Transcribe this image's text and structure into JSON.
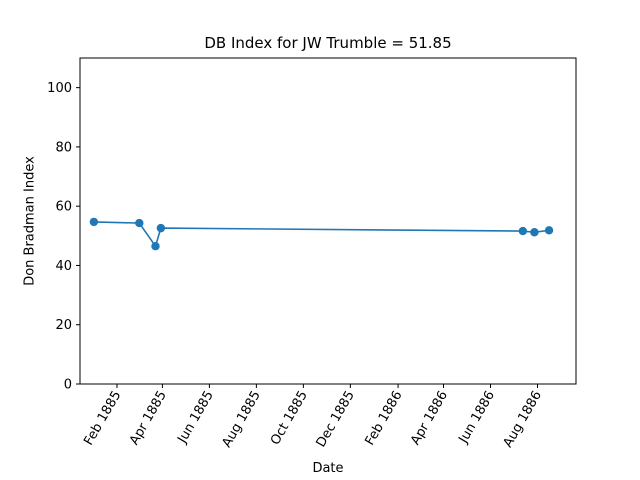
{
  "chart_data": {
    "type": "line",
    "title": "DB Index for JW Trumble = 51.85",
    "xlabel": "Date",
    "ylabel": "Don Bradman Index",
    "ylim": [
      0,
      110
    ],
    "yticks": [
      0,
      20,
      40,
      60,
      80,
      100
    ],
    "xlim": [
      "1884-12-15",
      "1886-09-20"
    ],
    "xticks": [
      {
        "date": "1885-02-01",
        "label": "Feb 1885"
      },
      {
        "date": "1885-04-01",
        "label": "Apr 1885"
      },
      {
        "date": "1885-06-01",
        "label": "Jun 1885"
      },
      {
        "date": "1885-08-01",
        "label": "Aug 1885"
      },
      {
        "date": "1885-10-01",
        "label": "Oct 1885"
      },
      {
        "date": "1885-12-01",
        "label": "Dec 1885"
      },
      {
        "date": "1886-02-01",
        "label": "Feb 1886"
      },
      {
        "date": "1886-04-01",
        "label": "Apr 1886"
      },
      {
        "date": "1886-06-01",
        "label": "Jun 1886"
      },
      {
        "date": "1886-08-01",
        "label": "Aug 1886"
      }
    ],
    "grid": false,
    "series": [
      {
        "color": "#1f77b4",
        "marker": "circle",
        "points": [
          {
            "x": "1885-01-02",
            "y": 54.7
          },
          {
            "x": "1885-03-02",
            "y": 54.3
          },
          {
            "x": "1885-03-23",
            "y": 46.5
          },
          {
            "x": "1885-03-30",
            "y": 52.6
          },
          {
            "x": "1886-07-13",
            "y": 51.6
          },
          {
            "x": "1886-07-28",
            "y": 51.2
          },
          {
            "x": "1886-08-16",
            "y": 51.85
          }
        ]
      }
    ]
  }
}
